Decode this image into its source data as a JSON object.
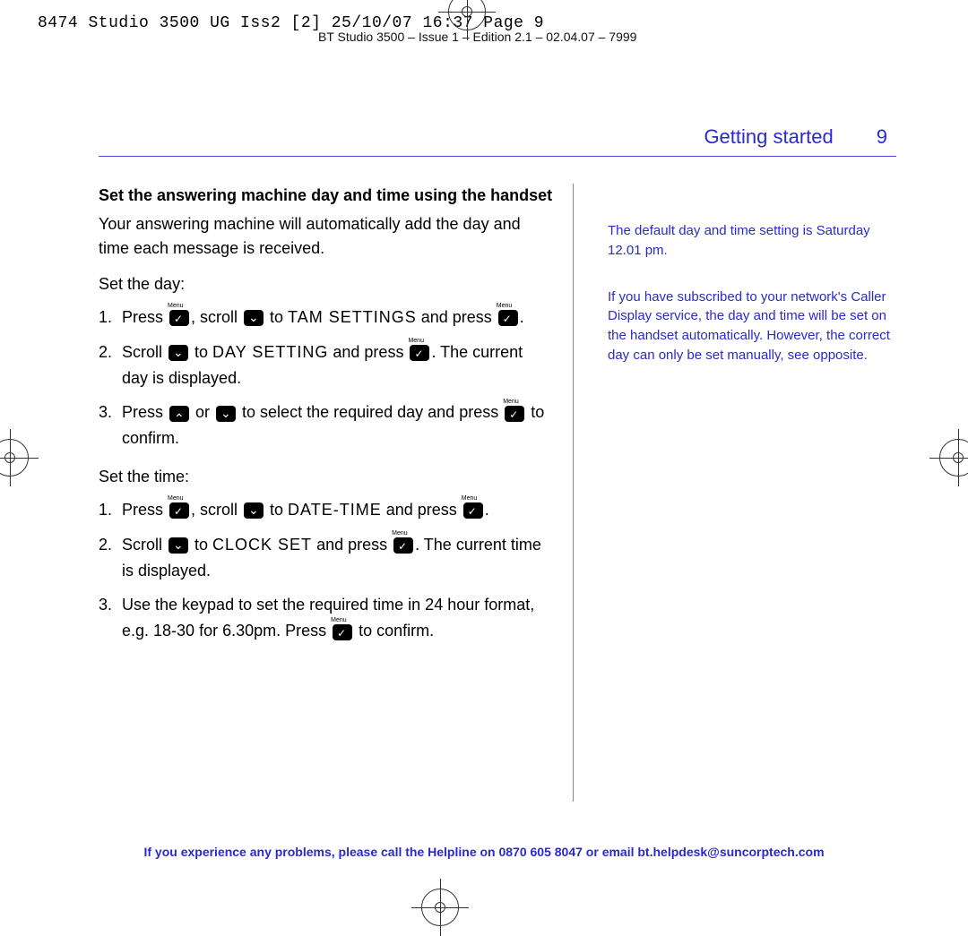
{
  "header": {
    "line1": "8474 Studio 3500 UG Iss2 [2]  25/10/07  16:37  Page 9",
    "line2": "BT Studio 3500 – Issue 1 – Edition 2.1 – 02.04.07 – 7999"
  },
  "section": {
    "title": "Getting started",
    "page_number": "9"
  },
  "left": {
    "subhead": "Set the answering machine day and time using the handset",
    "intro": "Your answering machine will automatically add the day and time each message is received.",
    "set_day_label": "Set the day:",
    "day_steps": {
      "s1_a": "Press ",
      "s1_b": ", scroll ",
      "s1_c": " to ",
      "s1_d": "TAM SETTINGS",
      "s1_e": " and press ",
      "s1_f": ".",
      "s2_a": "Scroll ",
      "s2_b": " to ",
      "s2_c": "DAY SETTING",
      "s2_d": " and press ",
      "s2_e": ". The current day is displayed.",
      "s3_a": "Press ",
      "s3_b": " or ",
      "s3_c": " to select the required day and press ",
      "s3_d": " to confirm."
    },
    "set_time_label": "Set the time:",
    "time_steps": {
      "s1_a": "Press ",
      "s1_b": ", scroll ",
      "s1_c": " to ",
      "s1_d": "DATE-TIME",
      "s1_e": " and press ",
      "s1_f": ".",
      "s2_a": "Scroll ",
      "s2_b": " to ",
      "s2_c": "CLOCK SET",
      "s2_d": " and press ",
      "s2_e": ". The current time is displayed.",
      "s3_a": "Use the keypad to set the required time in 24 hour format, e.g. 18-30 for 6.30pm. Press ",
      "s3_b": " to confirm."
    }
  },
  "right": {
    "note1": "The default day and time setting is Saturday 12.01 pm.",
    "note2": "If you have subscribed to your network's Caller Display service, the day and time will be set on the handset automatically. However, the correct day can only be set manually, see opposite."
  },
  "footer": "If you experience any problems, please call the Helpline on 0870 605 8047 or email bt.helpdesk@suncorptech.com"
}
